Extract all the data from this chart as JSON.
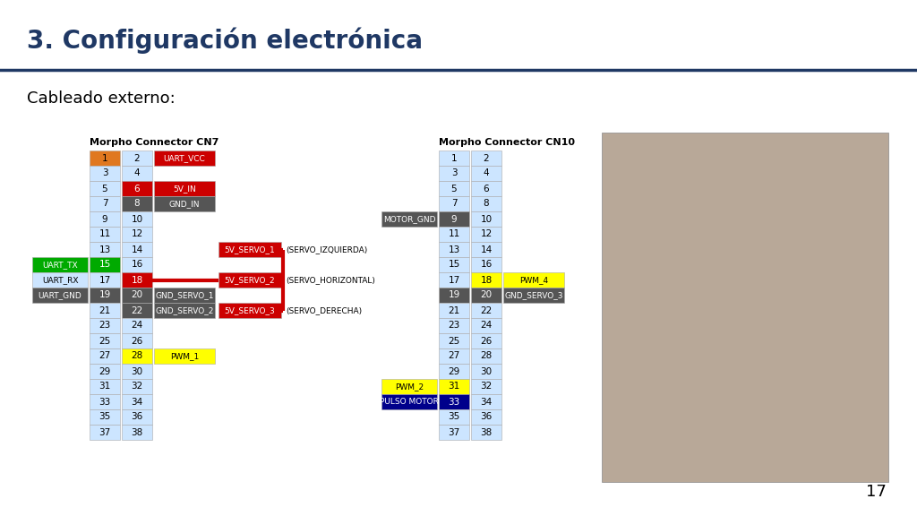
{
  "title": "3. Configuración electrónica",
  "subtitle": "Cableado externo:",
  "bg_color": "#ffffff",
  "title_color": "#1f3864",
  "title_fontsize": 20,
  "header_line_color": "#1f3864",
  "cn7_title": "Morpho Connector CN7",
  "cn10_title": "Morpho Connector CN10",
  "cell_bg": "#cce5ff",
  "cn7_rows": [
    {
      "left": "1",
      "right": "2",
      "label": "UART_VCC",
      "left_color": "#e07820",
      "right_color": "#cce5ff",
      "label_color": "#cc0000",
      "label_tc": "#ffffff",
      "left_extra": null,
      "left_extra_color": null
    },
    {
      "left": "3",
      "right": "4",
      "label": null,
      "left_color": "#cce5ff",
      "right_color": "#cce5ff",
      "label_color": null,
      "label_tc": null,
      "left_extra": null,
      "left_extra_color": null
    },
    {
      "left": "5",
      "right": "6",
      "label": "5V_IN",
      "left_color": "#cce5ff",
      "right_color": "#cc0000",
      "label_color": "#cc0000",
      "label_tc": "#ffffff",
      "left_extra": null,
      "left_extra_color": null
    },
    {
      "left": "7",
      "right": "8",
      "label": "GND_IN",
      "left_color": "#cce5ff",
      "right_color": "#555555",
      "label_color": "#555555",
      "label_tc": "#ffffff",
      "left_extra": null,
      "left_extra_color": null
    },
    {
      "left": "9",
      "right": "10",
      "label": null,
      "left_color": "#cce5ff",
      "right_color": "#cce5ff",
      "label_color": null,
      "label_tc": null,
      "left_extra": null,
      "left_extra_color": null
    },
    {
      "left": "11",
      "right": "12",
      "label": null,
      "left_color": "#cce5ff",
      "right_color": "#cce5ff",
      "label_color": null,
      "label_tc": null,
      "left_extra": null,
      "left_extra_color": null
    },
    {
      "left": "13",
      "right": "14",
      "label": null,
      "left_color": "#cce5ff",
      "right_color": "#cce5ff",
      "label_color": null,
      "label_tc": null,
      "left_extra": null,
      "left_extra_color": null
    },
    {
      "left": "15",
      "right": "16",
      "label": null,
      "left_color": "#00aa00",
      "right_color": "#cce5ff",
      "label_color": null,
      "label_tc": null,
      "left_extra": "UART_TX",
      "left_extra_color": "#00aa00"
    },
    {
      "left": "17",
      "right": "18",
      "label": null,
      "left_color": "#cce5ff",
      "right_color": "#cc0000",
      "label_color": null,
      "label_tc": null,
      "left_extra": "UART_RX",
      "left_extra_color": "#cce5ff"
    },
    {
      "left": "19",
      "right": "20",
      "label": "GND_SERVO_1",
      "left_color": "#555555",
      "right_color": "#555555",
      "label_color": "#555555",
      "label_tc": "#ffffff",
      "left_extra": "UART_GND",
      "left_extra_color": "#555555"
    },
    {
      "left": "21",
      "right": "22",
      "label": "GND_SERVO_2",
      "left_color": "#cce5ff",
      "right_color": "#555555",
      "label_color": "#555555",
      "label_tc": "#ffffff",
      "left_extra": null,
      "left_extra_color": null
    },
    {
      "left": "23",
      "right": "24",
      "label": null,
      "left_color": "#cce5ff",
      "right_color": "#cce5ff",
      "label_color": null,
      "label_tc": null,
      "left_extra": null,
      "left_extra_color": null
    },
    {
      "left": "25",
      "right": "26",
      "label": null,
      "left_color": "#cce5ff",
      "right_color": "#cce5ff",
      "label_color": null,
      "label_tc": null,
      "left_extra": null,
      "left_extra_color": null
    },
    {
      "left": "27",
      "right": "28",
      "label": "PWM_1",
      "left_color": "#cce5ff",
      "right_color": "#ffff00",
      "label_color": "#ffff00",
      "label_tc": "#000000",
      "left_extra": null,
      "left_extra_color": null
    },
    {
      "left": "29",
      "right": "30",
      "label": null,
      "left_color": "#cce5ff",
      "right_color": "#cce5ff",
      "label_color": null,
      "label_tc": null,
      "left_extra": null,
      "left_extra_color": null
    },
    {
      "left": "31",
      "right": "32",
      "label": null,
      "left_color": "#cce5ff",
      "right_color": "#cce5ff",
      "label_color": null,
      "label_tc": null,
      "left_extra": null,
      "left_extra_color": null
    },
    {
      "left": "33",
      "right": "34",
      "label": null,
      "left_color": "#cce5ff",
      "right_color": "#cce5ff",
      "label_color": null,
      "label_tc": null,
      "left_extra": null,
      "left_extra_color": null
    },
    {
      "left": "35",
      "right": "36",
      "label": null,
      "left_color": "#cce5ff",
      "right_color": "#cce5ff",
      "label_color": null,
      "label_tc": null,
      "left_extra": null,
      "left_extra_color": null
    },
    {
      "left": "37",
      "right": "38",
      "label": null,
      "left_color": "#cce5ff",
      "right_color": "#cce5ff",
      "label_color": null,
      "label_tc": null,
      "left_extra": null,
      "left_extra_color": null
    }
  ],
  "cn10_rows": [
    {
      "left": "1",
      "right": "2",
      "label": null,
      "left_color": "#cce5ff",
      "right_color": "#cce5ff",
      "label_color": null,
      "label_tc": null,
      "left_extra": null,
      "left_extra_color": null
    },
    {
      "left": "3",
      "right": "4",
      "label": null,
      "left_color": "#cce5ff",
      "right_color": "#cce5ff",
      "label_color": null,
      "label_tc": null,
      "left_extra": null,
      "left_extra_color": null
    },
    {
      "left": "5",
      "right": "6",
      "label": null,
      "left_color": "#cce5ff",
      "right_color": "#cce5ff",
      "label_color": null,
      "label_tc": null,
      "left_extra": null,
      "left_extra_color": null
    },
    {
      "left": "7",
      "right": "8",
      "label": null,
      "left_color": "#cce5ff",
      "right_color": "#cce5ff",
      "label_color": null,
      "label_tc": null,
      "left_extra": null,
      "left_extra_color": null
    },
    {
      "left": "9",
      "right": "10",
      "label": null,
      "left_color": "#555555",
      "right_color": "#cce5ff",
      "label_color": null,
      "label_tc": null,
      "left_extra": "MOTOR_GND",
      "left_extra_color": "#555555"
    },
    {
      "left": "11",
      "right": "12",
      "label": null,
      "left_color": "#cce5ff",
      "right_color": "#cce5ff",
      "label_color": null,
      "label_tc": null,
      "left_extra": null,
      "left_extra_color": null
    },
    {
      "left": "13",
      "right": "14",
      "label": null,
      "left_color": "#cce5ff",
      "right_color": "#cce5ff",
      "label_color": null,
      "label_tc": null,
      "left_extra": null,
      "left_extra_color": null
    },
    {
      "left": "15",
      "right": "16",
      "label": null,
      "left_color": "#cce5ff",
      "right_color": "#cce5ff",
      "label_color": null,
      "label_tc": null,
      "left_extra": null,
      "left_extra_color": null
    },
    {
      "left": "17",
      "right": "18",
      "label": "PWM_4",
      "left_color": "#cce5ff",
      "right_color": "#ffff00",
      "label_color": "#ffff00",
      "label_tc": "#000000",
      "left_extra": null,
      "left_extra_color": null
    },
    {
      "left": "19",
      "right": "20",
      "label": "GND_SERVO_3",
      "left_color": "#555555",
      "right_color": "#555555",
      "label_color": "#555555",
      "label_tc": "#ffffff",
      "left_extra": null,
      "left_extra_color": null
    },
    {
      "left": "21",
      "right": "22",
      "label": null,
      "left_color": "#cce5ff",
      "right_color": "#cce5ff",
      "label_color": null,
      "label_tc": null,
      "left_extra": null,
      "left_extra_color": null
    },
    {
      "left": "23",
      "right": "24",
      "label": null,
      "left_color": "#cce5ff",
      "right_color": "#cce5ff",
      "label_color": null,
      "label_tc": null,
      "left_extra": null,
      "left_extra_color": null
    },
    {
      "left": "25",
      "right": "26",
      "label": null,
      "left_color": "#cce5ff",
      "right_color": "#cce5ff",
      "label_color": null,
      "label_tc": null,
      "left_extra": null,
      "left_extra_color": null
    },
    {
      "left": "27",
      "right": "28",
      "label": null,
      "left_color": "#cce5ff",
      "right_color": "#cce5ff",
      "label_color": null,
      "label_tc": null,
      "left_extra": null,
      "left_extra_color": null
    },
    {
      "left": "29",
      "right": "30",
      "label": null,
      "left_color": "#cce5ff",
      "right_color": "#cce5ff",
      "label_color": null,
      "label_tc": null,
      "left_extra": null,
      "left_extra_color": null
    },
    {
      "left": "31",
      "right": "32",
      "label": null,
      "left_color": "#ffff00",
      "right_color": "#cce5ff",
      "label_color": null,
      "label_tc": null,
      "left_extra": "PWM_2",
      "left_extra_color": "#ffff00"
    },
    {
      "left": "33",
      "right": "34",
      "label": null,
      "left_color": "#00008b",
      "right_color": "#cce5ff",
      "label_color": null,
      "label_tc": null,
      "left_extra": "PULSO MOTOR",
      "left_extra_color": "#00008b"
    },
    {
      "left": "35",
      "right": "36",
      "label": null,
      "left_color": "#cce5ff",
      "right_color": "#cce5ff",
      "label_color": null,
      "label_tc": null,
      "left_extra": null,
      "left_extra_color": null
    },
    {
      "left": "37",
      "right": "38",
      "label": null,
      "left_color": "#cce5ff",
      "right_color": "#cce5ff",
      "label_color": null,
      "label_tc": null,
      "left_extra": null,
      "left_extra_color": null
    }
  ],
  "servo_labels": [
    {
      "text": "5V_SERVO_1",
      "annotation": "(SERVO_IZQUIERDA)",
      "row_idx": 6
    },
    {
      "text": "5V_SERVO_2",
      "annotation": "(SERVO_HORIZONTAL)",
      "row_idx": 8
    },
    {
      "text": "5V_SERVO_3",
      "annotation": "(SERVO_DERECHA)",
      "row_idx": 10
    }
  ],
  "page_number": "17",
  "photo_color": "#b8a898"
}
